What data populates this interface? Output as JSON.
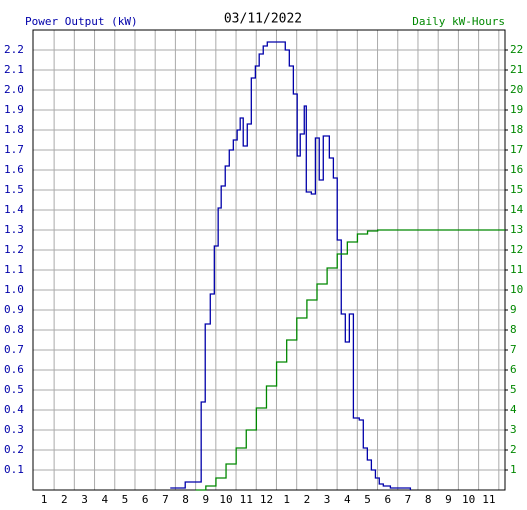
{
  "chart_data": {
    "type": "step",
    "title": "03/11/2022",
    "y_label": "Power Output (kW)",
    "y2_label": "Daily kW-Hours",
    "xlim": [
      0.45,
      23.8
    ],
    "xticks": [
      1,
      2,
      3,
      4,
      5,
      6,
      7,
      8,
      9,
      10,
      11,
      12,
      {
        "value": 13,
        "label": "1"
      },
      {
        "value": 14,
        "label": "2"
      },
      {
        "value": 15,
        "label": "3"
      },
      {
        "value": 16,
        "label": "4"
      },
      {
        "value": 17,
        "label": "5"
      },
      {
        "value": 18,
        "label": "6"
      },
      {
        "value": 19,
        "label": "7"
      },
      {
        "value": 20,
        "label": "8"
      },
      {
        "value": 21,
        "label": "9"
      },
      {
        "value": 22,
        "label": "10"
      },
      {
        "value": 23,
        "label": "11"
      }
    ],
    "ylim": [
      0,
      2.3
    ],
    "yticks": [
      0.1,
      0.2,
      0.3,
      0.4,
      0.5,
      0.6,
      0.7,
      0.8,
      0.9,
      {
        "value": 1,
        "label": "1.0"
      },
      1.1,
      1.2,
      1.3,
      1.4,
      1.5,
      1.6,
      1.7,
      1.8,
      1.9,
      {
        "value": 2,
        "label": "2.0"
      },
      2.1,
      2.2
    ],
    "y2lim": [
      0,
      23
    ],
    "y2ticks": [
      1,
      2,
      3,
      4,
      5,
      6,
      7,
      8,
      9,
      10,
      11,
      12,
      13,
      14,
      15,
      16,
      17,
      18,
      19,
      20,
      21,
      22
    ],
    "grid": true,
    "series": [
      {
        "name": "Power Output (kW)",
        "color": "#0000aa",
        "axis": "y",
        "x": [
          7.24,
          7.98,
          8.77,
          8.97,
          9.22,
          9.42,
          9.61,
          9.76,
          9.96,
          10.16,
          10.36,
          10.55,
          10.7,
          10.85,
          11.05,
          11.25,
          11.45,
          11.64,
          11.84,
          12.04,
          12.93,
          13.13,
          13.33,
          13.52,
          13.67,
          13.87,
          13.97,
          14.22,
          14.42,
          14.61,
          14.81,
          15.11,
          15.31,
          15.5,
          15.7,
          15.9,
          16.1,
          16.3,
          16.59,
          16.79,
          16.99,
          17.19,
          17.39,
          17.58,
          17.78,
          18.13,
          19.12
        ],
        "values": [
          0.01,
          0.04,
          0.44,
          0.83,
          0.98,
          1.22,
          1.41,
          1.52,
          1.62,
          1.7,
          1.75,
          1.8,
          1.86,
          1.72,
          1.83,
          2.06,
          2.12,
          2.18,
          2.22,
          2.24,
          2.2,
          2.12,
          1.98,
          1.67,
          1.78,
          1.92,
          1.49,
          1.48,
          1.76,
          1.55,
          1.77,
          1.66,
          1.56,
          1.25,
          0.88,
          0.74,
          0.88,
          0.36,
          0.35,
          0.21,
          0.15,
          0.1,
          0.06,
          0.03,
          0.02,
          0.01,
          0
        ]
      },
      {
        "name": "Daily kW-Hours",
        "color": "#008800",
        "axis": "y2",
        "x": [
          8.5,
          9,
          9.5,
          10,
          10.5,
          11,
          11.5,
          12,
          12.5,
          13,
          13.5,
          14,
          14.5,
          15,
          15.5,
          16,
          16.5,
          17,
          17.5,
          23.8
        ],
        "values": [
          0,
          0.2,
          0.6,
          1.3,
          2.1,
          3,
          4.1,
          5.2,
          6.4,
          7.5,
          8.6,
          9.5,
          10.3,
          11.1,
          11.8,
          12.4,
          12.8,
          12.95,
          13,
          13
        ]
      }
    ]
  }
}
